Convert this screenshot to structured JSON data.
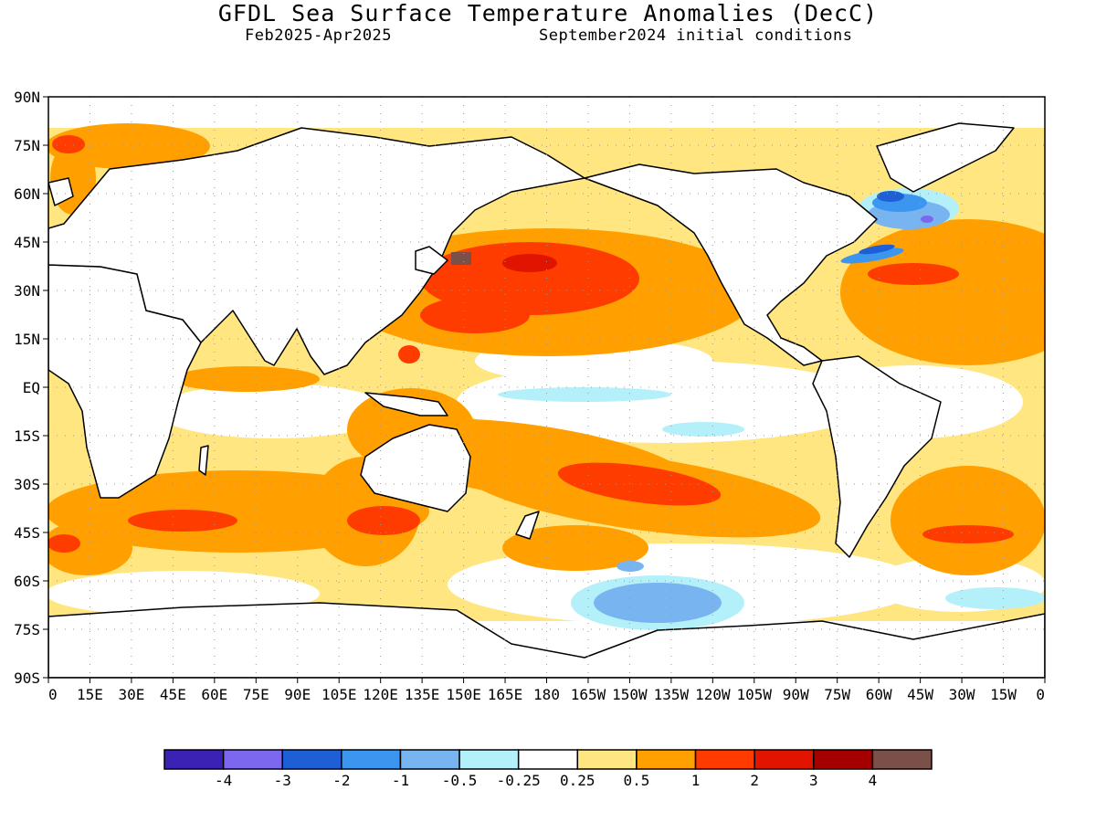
{
  "title": "GFDL Sea Surface Temperature Anomalies (DecC)",
  "subtitle_left": "Feb2025-Apr2025",
  "subtitle_right": "September2024 initial conditions",
  "lat_labels": [
    "90N",
    "75N",
    "60N",
    "45N",
    "30N",
    "15N",
    "EQ",
    "15S",
    "30S",
    "45S",
    "60S",
    "75S",
    "90S"
  ],
  "lon_labels": [
    "0",
    "15E",
    "30E",
    "45E",
    "60E",
    "75E",
    "90E",
    "105E",
    "120E",
    "135E",
    "150E",
    "165E",
    "180",
    "165W",
    "150W",
    "135W",
    "120W",
    "105W",
    "90W",
    "75W",
    "60W",
    "45W",
    "30W",
    "15W",
    "0"
  ],
  "colorbar": {
    "colors": [
      "#3c22b4",
      "#7b68ee",
      "#1e5fd6",
      "#3c96f0",
      "#78b4f0",
      "#b4f0fa",
      "#ffffff",
      "#ffe680",
      "#ffa000",
      "#ff3c00",
      "#e11400",
      "#a50000",
      "#7b5048"
    ],
    "tick_labels": [
      "-4",
      "-3",
      "-2",
      "-1",
      "-0.5",
      "-0.25",
      "0.25",
      "0.5",
      "1",
      "2",
      "3",
      "4"
    ]
  },
  "palette": {
    "land_outline": "#000000",
    "warm_light": "#ffe680",
    "warm": "#ffa000",
    "hot": "#ff3c00",
    "very_hot": "#e11400",
    "extreme": "#7b5048",
    "cool_light": "#b4f0fa",
    "cool": "#78b4f0",
    "cold": "#3c96f0",
    "colder": "#1e5fd6",
    "coldest": "#7b68ee"
  }
}
